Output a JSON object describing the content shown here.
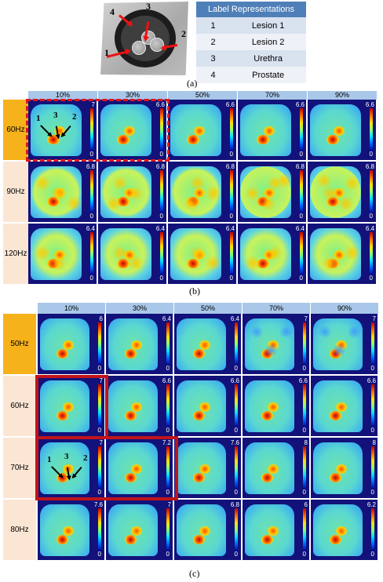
{
  "panel_a": {
    "caption": "(a)",
    "labels": [
      "1",
      "2",
      "3",
      "4"
    ],
    "legend": {
      "header": "Label Representations",
      "rows": [
        {
          "num": "1",
          "name": "Lesion 1"
        },
        {
          "num": "2",
          "name": "Lesion 2"
        },
        {
          "num": "3",
          "name": "Urethra"
        },
        {
          "num": "4",
          "name": "Prostate"
        }
      ]
    }
  },
  "panel_b": {
    "caption": "(b)",
    "columns": [
      "10%",
      "30%",
      "50%",
      "70%",
      "90%"
    ],
    "rows": [
      {
        "label": "60Hz",
        "max": [
          "7",
          "6.6",
          "6.6",
          "6.6",
          "6.6"
        ]
      },
      {
        "label": "90Hz",
        "max": [
          "6.8",
          "6.8",
          "6.8",
          "6.8",
          "6.8"
        ]
      },
      {
        "label": "120Hz",
        "max": [
          "6.4",
          "6.4",
          "6.4",
          "6.4",
          "6.4"
        ]
      }
    ],
    "min_label": "0",
    "annotations": [
      "1",
      "3",
      "2"
    ]
  },
  "panel_c": {
    "caption": "(c)",
    "columns": [
      "10%",
      "30%",
      "50%",
      "70%",
      "90%"
    ],
    "rows": [
      {
        "label": "50Hz",
        "max": [
          "6",
          "6.4",
          "6.4",
          "7",
          "7"
        ]
      },
      {
        "label": "60Hz",
        "max": [
          "7",
          "6.6",
          "6.6",
          "6.6",
          "6.6"
        ]
      },
      {
        "label": "70Hz",
        "max": [
          "7",
          "7.2",
          "7.6",
          "8",
          "8"
        ]
      },
      {
        "label": "80Hz",
        "max": [
          "7.6",
          "7",
          "6.8",
          "6",
          "6.2"
        ]
      }
    ],
    "min_label": "0",
    "annotations": [
      "1",
      "3",
      "2"
    ]
  },
  "colors": {
    "header_blue": "#a9c7e8",
    "row_orange": "#f6b21a",
    "row_peach": "#fbe6d4",
    "highlight_red": "#c0141a",
    "legend_header": "#4f7fb9"
  }
}
